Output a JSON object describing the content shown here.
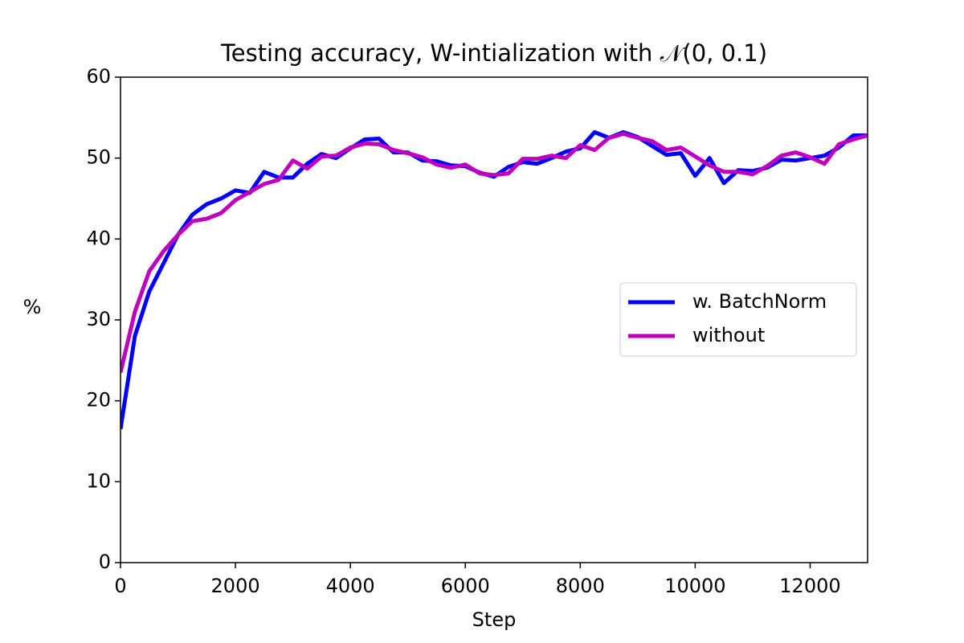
{
  "chart_data": {
    "type": "line",
    "title": "Testing accuracy, W-intialization with 𝒩(0, 0.1)",
    "x_label": "Step",
    "y_label": "%",
    "x": [
      0,
      250,
      500,
      750,
      1000,
      1250,
      1500,
      1750,
      2000,
      2250,
      2500,
      2750,
      3000,
      3250,
      3500,
      3750,
      4000,
      4250,
      4500,
      4750,
      5000,
      5250,
      5500,
      5750,
      6000,
      6250,
      6500,
      6750,
      7000,
      7250,
      7500,
      7750,
      8000,
      8250,
      8500,
      8750,
      9000,
      9250,
      9500,
      9750,
      10000,
      10250,
      10500,
      10750,
      11000,
      11250,
      11500,
      11750,
      12000,
      12250,
      12500,
      12750,
      13000
    ],
    "series": [
      {
        "name": "w. BatchNorm",
        "color": "#0000ff",
        "values": [
          16.5,
          28,
          33.5,
          37,
          40.5,
          43,
          44.3,
          45,
          46,
          45.7,
          48.3,
          47.6,
          47.6,
          49.3,
          50.5,
          50,
          51.2,
          52.3,
          52.4,
          50.7,
          50.7,
          49.7,
          49.6,
          49.1,
          49.0,
          48.2,
          47.7,
          48.9,
          49.5,
          49.3,
          50.0,
          50.8,
          51.2,
          53.2,
          52.5,
          53.2,
          52.6,
          51.5,
          50.4,
          50.6,
          47.8,
          50,
          46.9,
          48.5,
          48.4,
          48.8,
          49.8,
          49.7,
          50.0,
          50.3,
          51.3,
          52.8,
          52.8
        ]
      },
      {
        "name": "without",
        "color": "#bf00bf",
        "values": [
          23.5,
          31,
          36,
          38.5,
          40.5,
          42.2,
          42.5,
          43.2,
          44.8,
          45.8,
          46.8,
          47.3,
          49.7,
          48.7,
          50.2,
          50.3,
          51.3,
          51.8,
          51.7,
          51.0,
          50.6,
          50.1,
          49.2,
          48.8,
          49.2,
          48.1,
          47.9,
          48.1,
          49.9,
          49.9,
          50.3,
          50.0,
          51.6,
          51.0,
          52.5,
          53.0,
          52.5,
          52.1,
          51.0,
          51.3,
          50.2,
          49.1,
          48.3,
          48.3,
          48.0,
          49.0,
          50.3,
          50.7,
          50.1,
          49.3,
          51.7,
          52.3,
          52.8
        ]
      }
    ],
    "xlim": [
      0,
      13000
    ],
    "xticks": [
      0,
      2000,
      4000,
      6000,
      8000,
      10000,
      12000
    ],
    "ylim": [
      0,
      60
    ],
    "yticks": [
      0,
      10,
      20,
      30,
      40,
      50,
      60
    ],
    "legend": "center right",
    "grid": false
  }
}
